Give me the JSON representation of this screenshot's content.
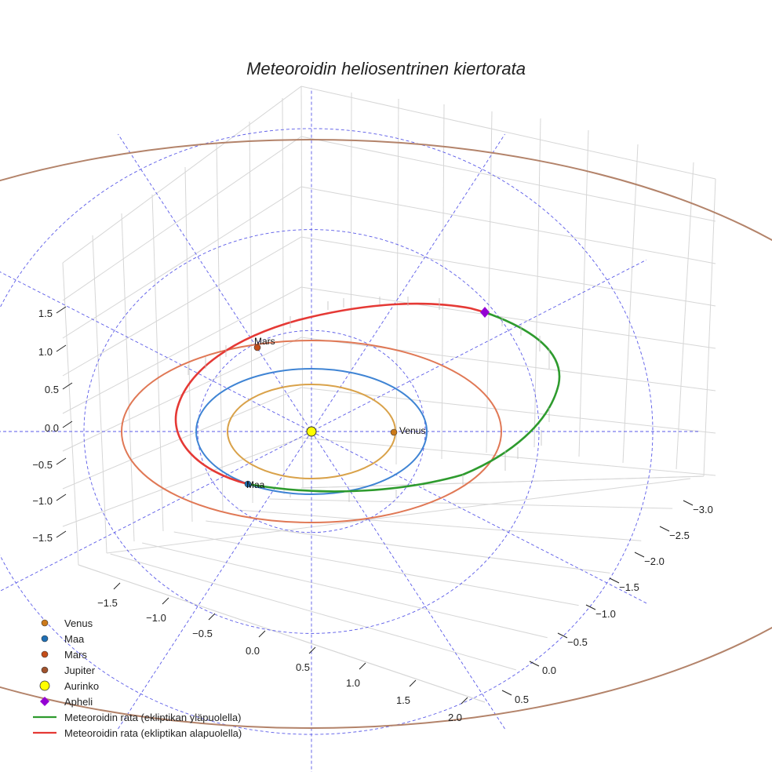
{
  "chart_data": {
    "type": "3d-line",
    "title": "Meteoroidin heliosentrinen kiertorata",
    "axes": {
      "x_ticks": [
        "−1.5",
        "−1.0",
        "−0.5",
        "0.0",
        "0.5",
        "1.0",
        "1.5",
        "2.0"
      ],
      "y_ticks": [
        "−3.0",
        "−2.5",
        "−2.0",
        "−1.5",
        "−1.0",
        "−0.5",
        "0.0",
        "0.5"
      ],
      "z_ticks": [
        "1.5",
        "1.0",
        "0.5",
        "0.0",
        "−0.5",
        "−1.0",
        "−1.5"
      ],
      "grid": true
    },
    "planets": [
      {
        "name": "Venus",
        "color": "#d9a24a",
        "radius": 0.72,
        "marker_color": "#cc7a1a",
        "label": "Venus"
      },
      {
        "name": "Maa",
        "color": "#3f84d4",
        "radius": 1.0,
        "marker_color": "#1f6fb4",
        "label": "Maa"
      },
      {
        "name": "Mars",
        "color": "#e07855",
        "radius": 1.52,
        "marker_color": "#c44e1a",
        "label": "Mars"
      },
      {
        "name": "Jupiter",
        "color": "#b3836a",
        "radius": 5.2,
        "marker_color": "#a0522d"
      }
    ],
    "sun": {
      "name": "Aurinko",
      "color": "#ffff00"
    },
    "aphelion": {
      "name": "Apheli",
      "color": "#9400d3"
    },
    "orbit_segments": [
      {
        "name": "Meteoroidin rata (ekliptikan yläpuolella)",
        "color": "#2e9b2e"
      },
      {
        "name": "Meteoroidin rata (ekliptikan alapuolella)",
        "color": "#e53935"
      }
    ],
    "legend": {
      "placement": "bottom-left",
      "entries": [
        "Venus",
        "Maa",
        "Mars",
        "Jupiter",
        "Aurinko",
        "Apheli",
        "Meteoroidin rata (ekliptikan yläpuolella)",
        "Meteoroidin rata (ekliptikan alapuolella)"
      ]
    }
  }
}
